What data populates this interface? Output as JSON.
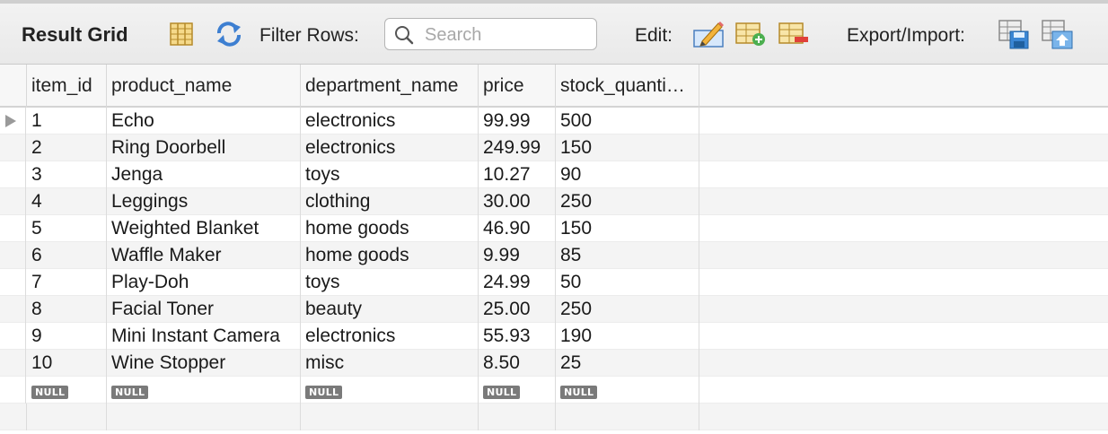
{
  "toolbar": {
    "title": "Result Grid",
    "filter_label": "Filter Rows:",
    "search_placeholder": "Search",
    "search_value": "",
    "edit_label": "Edit:",
    "export_label": "Export/Import:",
    "icons": [
      "form-view-icon",
      "refresh-icon",
      "search-icon",
      "edit-cell-icon",
      "add-row-icon",
      "delete-row-icon",
      "export-icon",
      "import-icon"
    ]
  },
  "columns": [
    "item_id",
    "product_name",
    "department_name",
    "price",
    "stock_quanti…"
  ],
  "rows": [
    [
      "1",
      "Echo",
      "electronics",
      "99.99",
      "500"
    ],
    [
      "2",
      "Ring Doorbell",
      "electronics",
      "249.99",
      "150"
    ],
    [
      "3",
      "Jenga",
      "toys",
      "10.27",
      "90"
    ],
    [
      "4",
      "Leggings",
      "clothing",
      "30.00",
      "250"
    ],
    [
      "5",
      "Weighted Blanket",
      "home goods",
      "46.90",
      "150"
    ],
    [
      "6",
      "Waffle Maker",
      "home goods",
      "9.99",
      "85"
    ],
    [
      "7",
      "Play-Doh",
      "toys",
      "24.99",
      "50"
    ],
    [
      "8",
      "Facial Toner",
      "beauty",
      "25.00",
      "250"
    ],
    [
      "9",
      "Mini Instant Camera",
      "electronics",
      "55.93",
      "190"
    ],
    [
      "10",
      "Wine Stopper",
      "misc",
      "8.50",
      "25"
    ]
  ],
  "null_label": "NULL",
  "current_row": 0
}
